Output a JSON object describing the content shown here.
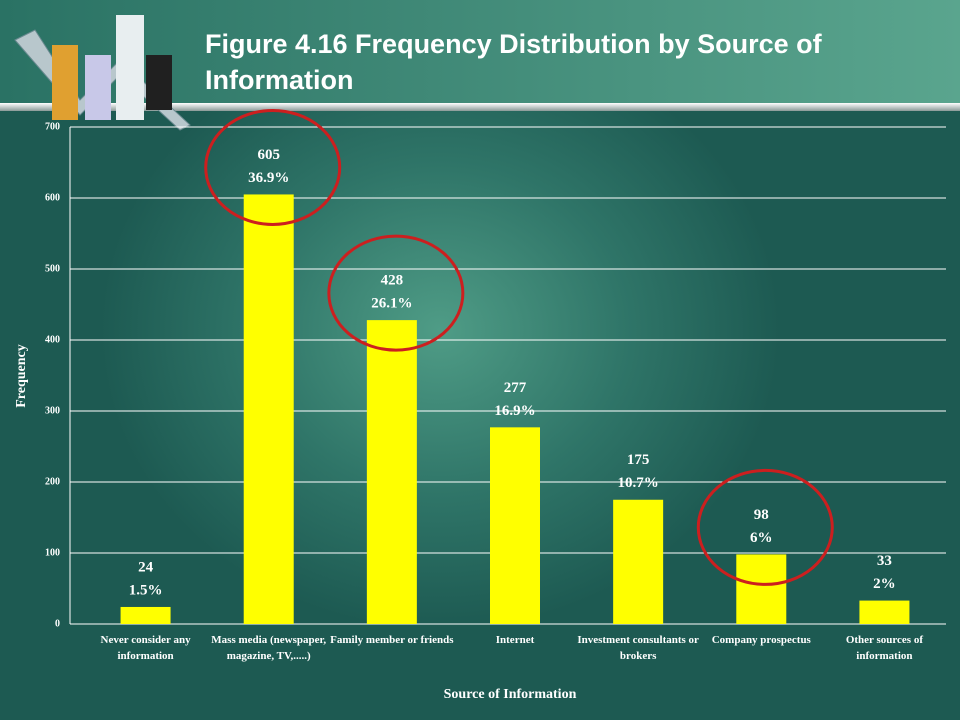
{
  "chart_data": {
    "type": "bar",
    "title": "Figure 4.16 Frequency Distribution by Source of Information",
    "x_label": "Source of Information",
    "y_label": "Frequency",
    "categories": [
      "Never consider any information",
      "Mass media (newspaper, magazine, TV,.....)",
      "Family member or friends",
      "Internet",
      "Investment consultants or brokers",
      "Company prospectus",
      "Other sources of information"
    ],
    "values": [
      24,
      605,
      428,
      277,
      175,
      98,
      33
    ],
    "percentages": [
      1.5,
      36.9,
      26.1,
      16.9,
      10.7,
      6,
      2
    ],
    "percentage_labels": [
      "1.5%",
      "36.9%",
      "26.1%",
      "16.9%",
      "10.7%",
      "6%",
      "2%"
    ],
    "color": "#ffff00",
    "ylim": [
      0,
      700
    ],
    "yticks": [
      0,
      100,
      200,
      300,
      400,
      500,
      600,
      700
    ],
    "grid": true,
    "highlighted": [
      1,
      2,
      5
    ],
    "highlight_color": "#cc1f1f"
  }
}
